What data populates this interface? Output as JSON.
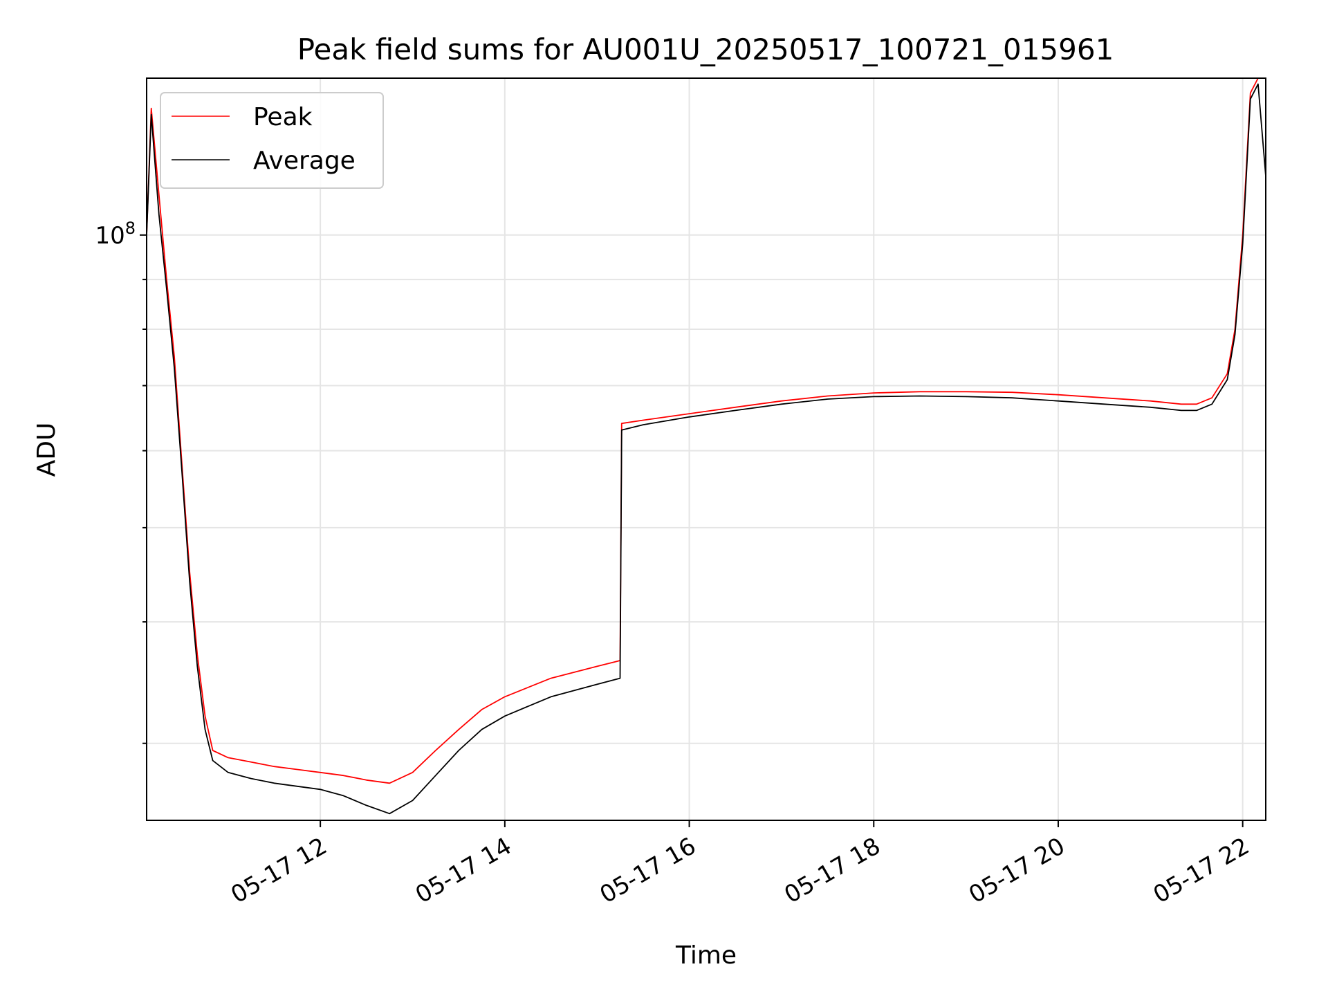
{
  "chart_data": {
    "type": "line",
    "title": "Peak field sums for AU001U_20250517_100721_015961",
    "xlabel": "Time",
    "ylabel": "ADU",
    "x_range": [
      "2025-05-17 10:07",
      "2025-05-17 22:15"
    ],
    "y_scale": "log",
    "ylim": [
      25000000,
      145000000
    ],
    "grid": true,
    "legend_position": "top-left",
    "x_ticks": [
      {
        "value": "2025-05-17 12:00",
        "label": "05-17 12"
      },
      {
        "value": "2025-05-17 14:00",
        "label": "05-17 14"
      },
      {
        "value": "2025-05-17 16:00",
        "label": "05-17 16"
      },
      {
        "value": "2025-05-17 18:00",
        "label": "05-17 18"
      },
      {
        "value": "2025-05-17 20:00",
        "label": "05-17 20"
      },
      {
        "value": "2025-05-17 22:00",
        "label": "05-17 22"
      }
    ],
    "y_major_ticks": [
      {
        "value": 100000000,
        "base": "10",
        "exponent": "8"
      }
    ],
    "y_minor_ticks": [
      30000000,
      40000000,
      50000000,
      60000000,
      70000000,
      80000000,
      90000000
    ],
    "series": [
      {
        "name": "Peak",
        "color": "#ff0000",
        "x": [
          "2025-05-17 10:07",
          "2025-05-17 10:10",
          "2025-05-17 10:15",
          "2025-05-17 10:20",
          "2025-05-17 10:25",
          "2025-05-17 10:30",
          "2025-05-17 10:35",
          "2025-05-17 10:40",
          "2025-05-17 10:45",
          "2025-05-17 10:50",
          "2025-05-17 11:00",
          "2025-05-17 11:15",
          "2025-05-17 11:30",
          "2025-05-17 11:45",
          "2025-05-17 12:00",
          "2025-05-17 12:15",
          "2025-05-17 12:30",
          "2025-05-17 12:45",
          "2025-05-17 13:00",
          "2025-05-17 13:15",
          "2025-05-17 13:30",
          "2025-05-17 13:45",
          "2025-05-17 14:00",
          "2025-05-17 14:30",
          "2025-05-17 15:00",
          "2025-05-17 15:15",
          "2025-05-17 15:16",
          "2025-05-17 15:30",
          "2025-05-17 16:00",
          "2025-05-17 16:30",
          "2025-05-17 17:00",
          "2025-05-17 17:30",
          "2025-05-17 18:00",
          "2025-05-17 18:30",
          "2025-05-17 19:00",
          "2025-05-17 19:30",
          "2025-05-17 20:00",
          "2025-05-17 20:30",
          "2025-05-17 21:00",
          "2025-05-17 21:20",
          "2025-05-17 21:30",
          "2025-05-17 21:40",
          "2025-05-17 21:50",
          "2025-05-17 21:55",
          "2025-05-17 22:00",
          "2025-05-17 22:05",
          "2025-05-17 22:10",
          "2025-05-17 22:15"
        ],
        "values": [
          100000000,
          135000000,
          110000000,
          90000000,
          75000000,
          58000000,
          45000000,
          37000000,
          32000000,
          29500000,
          29000000,
          28700000,
          28400000,
          28200000,
          28000000,
          27800000,
          27500000,
          27300000,
          28000000,
          29500000,
          31000000,
          32500000,
          33500000,
          35000000,
          36000000,
          36500000,
          64000000,
          64500000,
          65500000,
          66500000,
          67500000,
          68300000,
          68800000,
          69000000,
          69000000,
          68900000,
          68500000,
          68000000,
          67500000,
          67000000,
          67000000,
          68000000,
          72000000,
          80000000,
          100000000,
          140000000,
          145000000,
          145000000
        ]
      },
      {
        "name": "Average",
        "color": "#000000",
        "x": [
          "2025-05-17 10:07",
          "2025-05-17 10:10",
          "2025-05-17 10:15",
          "2025-05-17 10:20",
          "2025-05-17 10:25",
          "2025-05-17 10:30",
          "2025-05-17 10:35",
          "2025-05-17 10:40",
          "2025-05-17 10:45",
          "2025-05-17 10:50",
          "2025-05-17 11:00",
          "2025-05-17 11:15",
          "2025-05-17 11:30",
          "2025-05-17 11:45",
          "2025-05-17 12:00",
          "2025-05-17 12:15",
          "2025-05-17 12:30",
          "2025-05-17 12:45",
          "2025-05-17 13:00",
          "2025-05-17 13:15",
          "2025-05-17 13:30",
          "2025-05-17 13:45",
          "2025-05-17 14:00",
          "2025-05-17 14:30",
          "2025-05-17 15:00",
          "2025-05-17 15:15",
          "2025-05-17 15:16",
          "2025-05-17 15:30",
          "2025-05-17 16:00",
          "2025-05-17 16:30",
          "2025-05-17 17:00",
          "2025-05-17 17:30",
          "2025-05-17 18:00",
          "2025-05-17 18:30",
          "2025-05-17 19:00",
          "2025-05-17 19:30",
          "2025-05-17 20:00",
          "2025-05-17 20:30",
          "2025-05-17 21:00",
          "2025-05-17 21:20",
          "2025-05-17 21:30",
          "2025-05-17 21:40",
          "2025-05-17 21:50",
          "2025-05-17 21:55",
          "2025-05-17 22:00",
          "2025-05-17 22:05",
          "2025-05-17 22:10",
          "2025-05-17 22:15"
        ],
        "values": [
          100000000,
          133000000,
          105000000,
          88000000,
          73000000,
          57000000,
          44000000,
          36000000,
          31000000,
          28800000,
          28000000,
          27600000,
          27300000,
          27100000,
          26900000,
          26500000,
          25900000,
          25400000,
          26200000,
          27800000,
          29500000,
          31000000,
          32000000,
          33500000,
          34500000,
          35000000,
          63000000,
          63800000,
          65000000,
          66000000,
          67000000,
          67800000,
          68200000,
          68300000,
          68200000,
          68000000,
          67500000,
          67000000,
          66500000,
          66000000,
          66000000,
          67000000,
          71000000,
          79000000,
          98000000,
          138000000,
          143000000,
          115000000
        ]
      }
    ]
  }
}
